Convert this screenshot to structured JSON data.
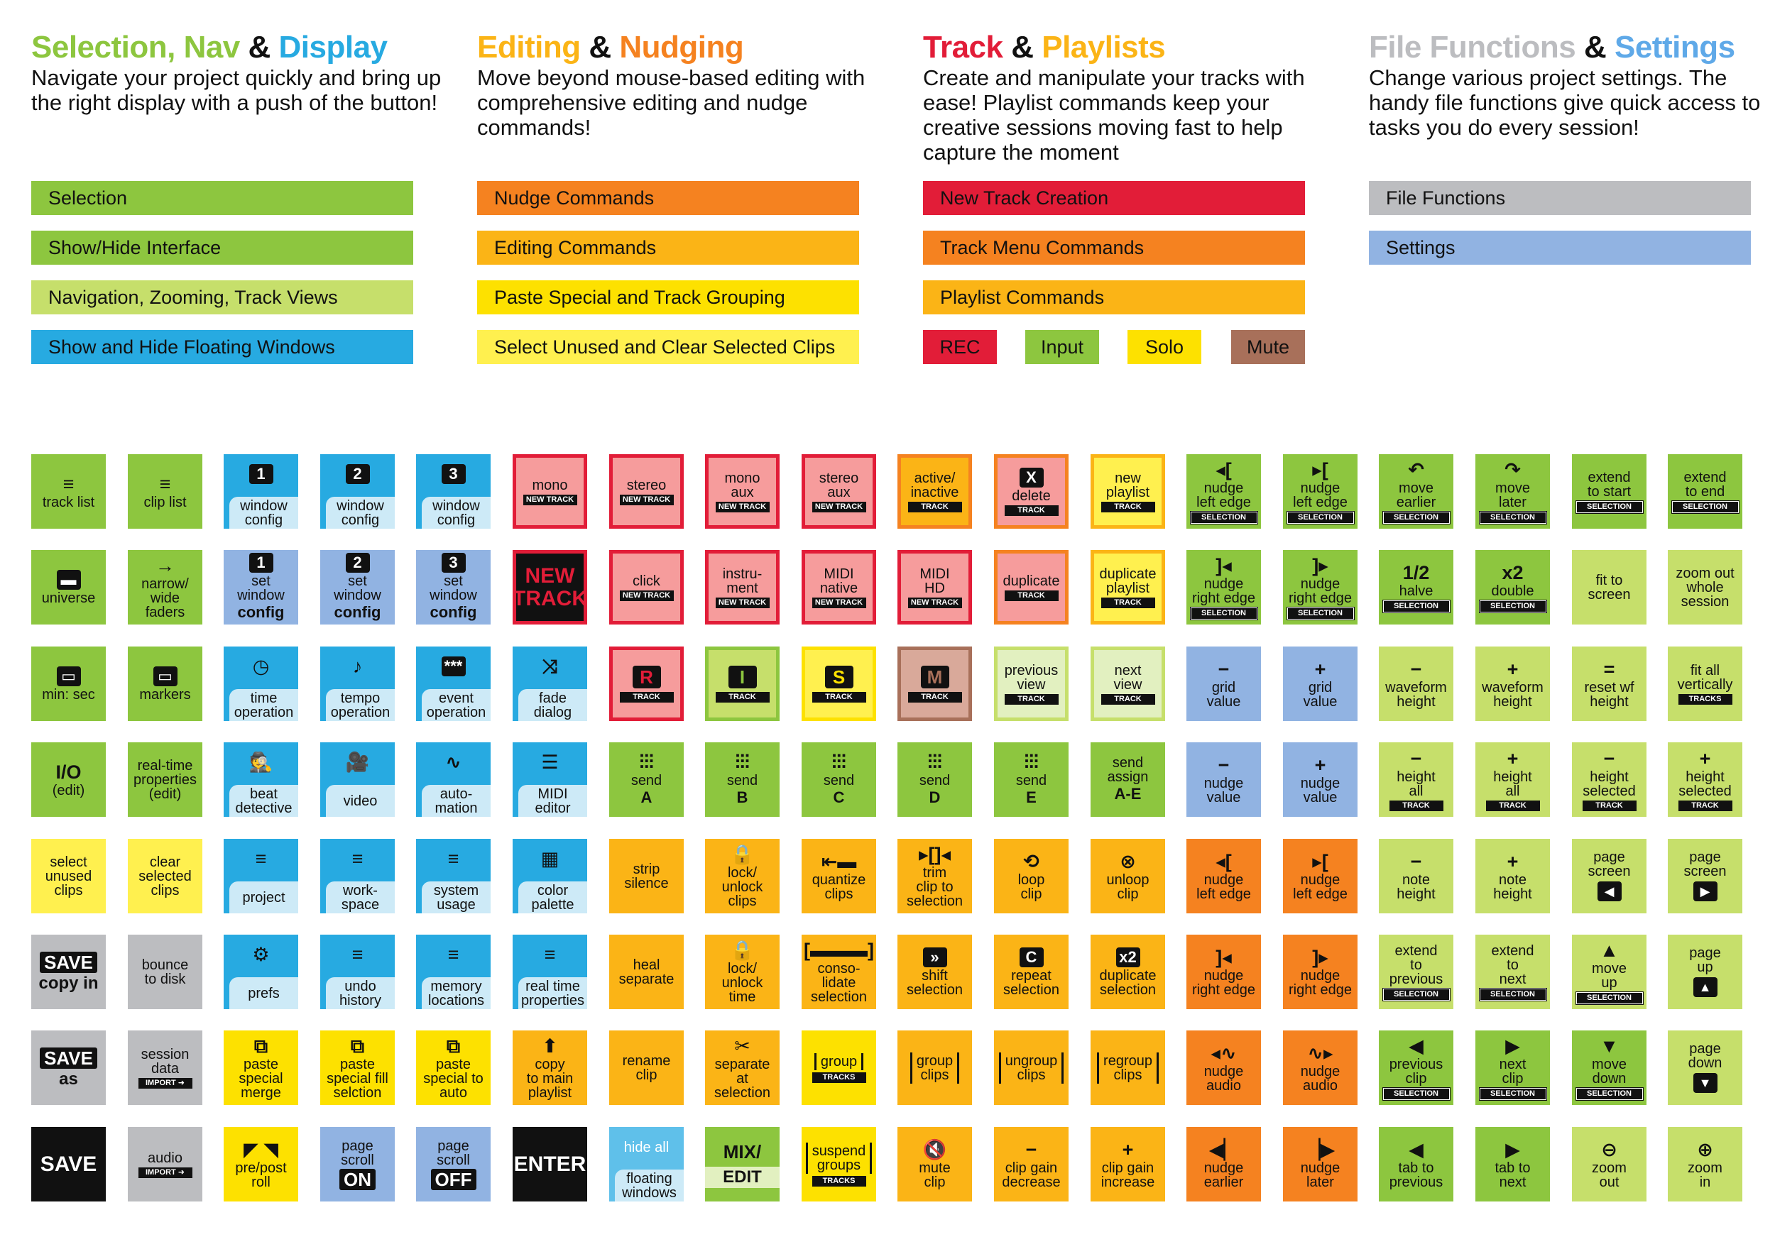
{
  "colors": {
    "green": "#8dc63f",
    "lightgreen": "#c6df6b",
    "blue": "#27aae1",
    "skyblue": "#5fc0ea",
    "orange": "#f58220",
    "amber": "#fbb416",
    "yellow": "#fde100",
    "paleyellow": "#fff04f",
    "red": "#e21d38",
    "pink": "#f69c9c",
    "gray": "#bcbdc0",
    "periwinkle": "#91b3e2",
    "brown": "#a8705a",
    "black": "#111111",
    "paleblue": "#cdeaf7"
  },
  "header": [
    {
      "title_parts": [
        {
          "text": "Selection, Nav",
          "color": "#8dc63f"
        },
        {
          "text": " & ",
          "color": "#111111"
        },
        {
          "text": "Display",
          "color": "#27aae1"
        }
      ],
      "desc": "Navigate your project quickly and bring up the right display with a push of the button!"
    },
    {
      "title_parts": [
        {
          "text": "Editing",
          "color": "#fbb416"
        },
        {
          "text": " & ",
          "color": "#111111"
        },
        {
          "text": "Nudging",
          "color": "#f58220"
        }
      ],
      "desc": "Move beyond mouse-based editing with comprehensive editing and nudge commands!"
    },
    {
      "title_parts": [
        {
          "text": "Track",
          "color": "#e21d38"
        },
        {
          "text": " & ",
          "color": "#111111"
        },
        {
          "text": "Playlists",
          "color": "#fbb416"
        }
      ],
      "desc": "Create and manipulate your tracks with ease! Playlist commands keep your creative sessions moving fast to help capture the moment"
    },
    {
      "title_parts": [
        {
          "text": "File Functions",
          "color": "#bcbdc0"
        },
        {
          "text": " & ",
          "color": "#111111"
        },
        {
          "text": "Settings",
          "color": "#5fa9e8"
        }
      ],
      "desc": "Change various project settings. The handy file functions give quick access to tasks you do every session!"
    }
  ],
  "legend": [
    [
      {
        "label": "Selection",
        "color": "#8dc63f"
      },
      {
        "label": "Show/Hide Interface",
        "color": "#8dc63f"
      },
      {
        "label": "Navigation, Zooming, Track Views",
        "color": "#c6df6b"
      },
      {
        "label": "Show and Hide Floating Windows",
        "color": "#27aae1"
      }
    ],
    [
      {
        "label": "Nudge Commands",
        "color": "#f58220"
      },
      {
        "label": "Editing Commands",
        "color": "#fbb416"
      },
      {
        "label": "Paste Special and Track Grouping",
        "color": "#fde100"
      },
      {
        "label": "Select Unused and Clear Selected Clips",
        "color": "#fff04f"
      }
    ],
    [
      {
        "label": "New Track Creation",
        "color": "#e21d38"
      },
      {
        "label": "Track Menu Commands",
        "color": "#f58220"
      },
      {
        "label": "Playlist Commands",
        "color": "#fbb416"
      }
    ],
    [
      {
        "label": "File Functions",
        "color": "#bcbdc0"
      },
      {
        "label": "Settings",
        "color": "#91b3e2"
      }
    ]
  ],
  "legend_mini": [
    {
      "label": "REC",
      "color": "#e21d38"
    },
    {
      "label": "Input",
      "color": "#8dc63f"
    },
    {
      "label": "Solo",
      "color": "#fde100"
    },
    {
      "label": "Mute",
      "color": "#a8705a"
    }
  ],
  "keys": [
    [
      {
        "bg": "#8dc63f",
        "icon": "≡",
        "label": "track list"
      },
      {
        "bg": "#8dc63f",
        "icon": "≡",
        "label": "clip list"
      },
      {
        "style": "tab",
        "icon": "1",
        "iconbox": true,
        "label": "window\nconfig"
      },
      {
        "style": "tab",
        "icon": "2",
        "iconbox": true,
        "label": "window\nconfig"
      },
      {
        "style": "tab",
        "icon": "3",
        "iconbox": true,
        "label": "window\nconfig"
      },
      {
        "bg": "#f69c9c",
        "border": "#e21d38",
        "label": "mono",
        "tag": "NEW TRACK"
      },
      {
        "bg": "#f69c9c",
        "border": "#e21d38",
        "label": "stereo",
        "tag": "NEW TRACK"
      },
      {
        "bg": "#f69c9c",
        "border": "#e21d38",
        "label": "mono\naux",
        "tag": "NEW TRACK"
      },
      {
        "bg": "#f69c9c",
        "border": "#e21d38",
        "label": "stereo\naux",
        "tag": "NEW TRACK"
      },
      {
        "bg": "#fbb416",
        "border": "#f58220",
        "label": "active/\ninactive",
        "tag": "TRACK"
      },
      {
        "bg": "#f69c9c",
        "border": "#f58220",
        "icon": "X",
        "iconbox": true,
        "label": "delete",
        "tag": "TRACK"
      },
      {
        "bg": "#fff04f",
        "border": "#fbb416",
        "label": "new\nplaylist",
        "tag": "TRACK"
      },
      {
        "bg": "#8dc63f",
        "icon": "◂[",
        "label": "nudge\nleft edge",
        "tag": "SELECTION",
        "tagsel": true
      },
      {
        "bg": "#8dc63f",
        "icon": "▸[",
        "label": "nudge\nleft edge",
        "tag": "SELECTION",
        "tagsel": true
      },
      {
        "bg": "#8dc63f",
        "icon": "↶",
        "label": "move\nearlier",
        "tag": "SELECTION",
        "tagsel": true
      },
      {
        "bg": "#8dc63f",
        "icon": "↷",
        "label": "move\nlater",
        "tag": "SELECTION",
        "tagsel": true
      },
      {
        "bg": "#8dc63f",
        "label": "extend\nto start",
        "tag": "SELECTION",
        "tagsel": true
      },
      {
        "bg": "#8dc63f",
        "label": "extend\nto end",
        "tag": "SELECTION",
        "tagsel": true
      }
    ],
    [
      {
        "bg": "#8dc63f",
        "icon": "▬",
        "iconbox": true,
        "label": "universe"
      },
      {
        "bg": "#8dc63f",
        "icon": "→",
        "label": "narrow/\nwide\nfaders"
      },
      {
        "bg": "#91b3e2",
        "icon": "1",
        "iconbox": true,
        "label": "set\nwindow",
        "bold": "config"
      },
      {
        "bg": "#91b3e2",
        "icon": "2",
        "iconbox": true,
        "label": "set\nwindow",
        "bold": "config"
      },
      {
        "bg": "#91b3e2",
        "icon": "3",
        "iconbox": true,
        "label": "set\nwindow",
        "bold": "config"
      },
      {
        "bg": "#111111",
        "border": "#e21d38",
        "bigred": "NEW\nTRACK"
      },
      {
        "bg": "#f69c9c",
        "border": "#e21d38",
        "label": "click",
        "tag": "NEW TRACK"
      },
      {
        "bg": "#f69c9c",
        "border": "#e21d38",
        "label": "instru-\nment",
        "tag": "NEW TRACK"
      },
      {
        "bg": "#f69c9c",
        "border": "#e21d38",
        "label": "MIDI\nnative",
        "tag": "NEW TRACK"
      },
      {
        "bg": "#f69c9c",
        "border": "#e21d38",
        "label": "MIDI\nHD",
        "tag": "NEW TRACK"
      },
      {
        "bg": "#f69c9c",
        "border": "#f58220",
        "label": "duplicate",
        "tag": "TRACK"
      },
      {
        "bg": "#fff04f",
        "border": "#fbb416",
        "label": "duplicate\nplaylist",
        "tag": "TRACK"
      },
      {
        "bg": "#8dc63f",
        "icon": "]◂",
        "label": "nudge\nright edge",
        "tag": "SELECTION",
        "tagsel": true
      },
      {
        "bg": "#8dc63f",
        "icon": "]▸",
        "label": "nudge\nright edge",
        "tag": "SELECTION",
        "tagsel": true
      },
      {
        "bg": "#8dc63f",
        "icon": "1/2",
        "label": "halve",
        "tag": "SELECTION",
        "tagsel": true
      },
      {
        "bg": "#8dc63f",
        "icon": "x2",
        "label": "double",
        "tag": "SELECTION",
        "tagsel": true
      },
      {
        "bg": "#c6df6b",
        "label": "fit to\nscreen"
      },
      {
        "bg": "#c6df6b",
        "label": "zoom out\nwhole\nsession"
      }
    ],
    [
      {
        "bg": "#8dc63f",
        "icon": "▭",
        "iconbox": true,
        "label": "min: sec"
      },
      {
        "bg": "#8dc63f",
        "icon": "▭",
        "iconbox": true,
        "label": "markers"
      },
      {
        "style": "tab",
        "icon": "◷",
        "label": "time\noperation"
      },
      {
        "style": "tab",
        "icon": "♪",
        "label": "tempo\noperation"
      },
      {
        "style": "tab",
        "icon": "***",
        "iconbox": true,
        "label": "event\noperation"
      },
      {
        "style": "tab",
        "icon": "⤨",
        "label": "fade\ndialog"
      },
      {
        "bg": "#f69c9c",
        "border": "#e21d38",
        "icon": "R",
        "iconbox": true,
        "iconcolor": "#e21d38",
        "tag": "TRACK"
      },
      {
        "bg": "#c6df6b",
        "border": "#8dc63f",
        "icon": "I",
        "iconbox": true,
        "iconcolor": "#8dc63f",
        "tag": "TRACK"
      },
      {
        "bg": "#fff04f",
        "border": "#fde100",
        "icon": "S",
        "iconbox": true,
        "iconcolor": "#fde100",
        "tag": "TRACK"
      },
      {
        "bg": "#d9a99a",
        "border": "#a8705a",
        "icon": "M",
        "iconbox": true,
        "iconcolor": "#a8705a",
        "tag": "TRACK"
      },
      {
        "bg": "#e2f0c0",
        "border": "#c6df6b",
        "label": "previous\nview",
        "tag": "TRACK"
      },
      {
        "bg": "#e2f0c0",
        "border": "#c6df6b",
        "label": "next\nview",
        "tag": "TRACK"
      },
      {
        "bg": "#91b3e2",
        "icon": "−",
        "label": "grid\nvalue"
      },
      {
        "bg": "#91b3e2",
        "icon": "+",
        "label": "grid\nvalue"
      },
      {
        "bg": "#c6df6b",
        "icon": "−",
        "label": "waveform\nheight"
      },
      {
        "bg": "#c6df6b",
        "icon": "+",
        "label": "waveform\nheight"
      },
      {
        "bg": "#c6df6b",
        "icon": "=",
        "label": "reset wf\nheight"
      },
      {
        "bg": "#c6df6b",
        "label": "fit all\nvertically",
        "tag": "TRACKS"
      }
    ],
    [
      {
        "bg": "#8dc63f",
        "icon": "I/O",
        "label": "(edit)"
      },
      {
        "bg": "#8dc63f",
        "label": "real-time\nproperties\n(edit)"
      },
      {
        "style": "tab",
        "icon": "🕵",
        "label": "beat\ndetective"
      },
      {
        "style": "tab",
        "icon": "🎥",
        "label": "video"
      },
      {
        "style": "tab",
        "icon": "∿",
        "label": "auto-\nmation"
      },
      {
        "style": "tab",
        "icon": "☰",
        "label": "MIDI\neditor"
      },
      {
        "bg": "#8dc63f",
        "icon": "⫶⫶⫶",
        "label": "send",
        "bold": "A"
      },
      {
        "bg": "#8dc63f",
        "icon": "⫶⫶⫶",
        "label": "send",
        "bold": "B"
      },
      {
        "bg": "#8dc63f",
        "icon": "⫶⫶⫶",
        "label": "send",
        "bold": "C"
      },
      {
        "bg": "#8dc63f",
        "icon": "⫶⫶⫶",
        "label": "send",
        "bold": "D"
      },
      {
        "bg": "#8dc63f",
        "icon": "⫶⫶⫶",
        "label": "send",
        "bold": "E"
      },
      {
        "bg": "#8dc63f",
        "label": "send\nassign",
        "bold": "A-E"
      },
      {
        "bg": "#91b3e2",
        "icon": "−",
        "label": "nudge\nvalue"
      },
      {
        "bg": "#91b3e2",
        "icon": "+",
        "label": "nudge\nvalue"
      },
      {
        "bg": "#c6df6b",
        "icon": "−",
        "label": "height\nall",
        "tag": "TRACK"
      },
      {
        "bg": "#c6df6b",
        "icon": "+",
        "label": "height\nall",
        "tag": "TRACK"
      },
      {
        "bg": "#c6df6b",
        "icon": "−",
        "label": "height\nselected",
        "tag": "TRACK"
      },
      {
        "bg": "#c6df6b",
        "icon": "+",
        "label": "height\nselected",
        "tag": "TRACK"
      }
    ],
    [
      {
        "bg": "#fff04f",
        "label": "select\nunused\nclips"
      },
      {
        "bg": "#fff04f",
        "label": "clear\nselected\nclips"
      },
      {
        "style": "tab",
        "icon": "≡",
        "label": "project"
      },
      {
        "style": "tab",
        "icon": "≡",
        "label": "work-\nspace"
      },
      {
        "style": "tab",
        "icon": "≡",
        "label": "system\nusage"
      },
      {
        "style": "tab",
        "icon": "▦",
        "label": "color\npalette"
      },
      {
        "bg": "#fbb416",
        "label": "strip\nsilence"
      },
      {
        "bg": "#fbb416",
        "icon": "🔒",
        "label": "lock/\nunlock\nclips"
      },
      {
        "bg": "#fbb416",
        "icon": "⇤▬",
        "label": "quantize\nclips"
      },
      {
        "bg": "#fbb416",
        "icon": "▸[]◂",
        "label": "trim\nclip to\nselection"
      },
      {
        "bg": "#fbb416",
        "icon": "⟲",
        "label": "loop\nclip"
      },
      {
        "bg": "#fbb416",
        "icon": "⊗",
        "label": "unloop\nclip"
      },
      {
        "bg": "#f58220",
        "icon": "◂[",
        "label": "nudge\nleft edge"
      },
      {
        "bg": "#f58220",
        "icon": "▸[",
        "label": "nudge\nleft edge"
      },
      {
        "bg": "#c6df6b",
        "icon": "−",
        "label": "note\nheight"
      },
      {
        "bg": "#c6df6b",
        "icon": "+",
        "label": "note\nheight"
      },
      {
        "bg": "#c6df6b",
        "label": "page\nscreen",
        "sicon": "◀"
      },
      {
        "bg": "#c6df6b",
        "label": "page\nscreen",
        "sicon": "▶"
      }
    ],
    [
      {
        "bg": "#bcbdc0",
        "btn": "SAVE",
        "sub": "copy in"
      },
      {
        "bg": "#bcbdc0",
        "label": "bounce\nto disk"
      },
      {
        "style": "tab",
        "icon": "⚙",
        "label": "prefs"
      },
      {
        "style": "tab",
        "icon": "≡",
        "label": "undo\nhistory"
      },
      {
        "style": "tab",
        "icon": "≡",
        "label": "memory\nlocations"
      },
      {
        "style": "tab",
        "icon": "≡",
        "label": "real time\nproperties"
      },
      {
        "bg": "#fbb416",
        "label": "heal\nseparate"
      },
      {
        "bg": "#fbb416",
        "icon": "🔒",
        "label": "lock/\nunlock\ntime"
      },
      {
        "bg": "#fbb416",
        "icon": "[▬▬▬]",
        "label": "conso-\nlidate\nselection"
      },
      {
        "bg": "#fbb416",
        "icon": "»",
        "iconbox": true,
        "label": "shift\nselection"
      },
      {
        "bg": "#fbb416",
        "icon": "C",
        "iconbox": true,
        "label": "repeat\nselection"
      },
      {
        "bg": "#fbb416",
        "icon": "x2",
        "iconbox": true,
        "label": "duplicate\nselection"
      },
      {
        "bg": "#f58220",
        "icon": "]◂",
        "label": "nudge\nright edge"
      },
      {
        "bg": "#f58220",
        "icon": "]▸",
        "label": "nudge\nright edge"
      },
      {
        "bg": "#c6df6b",
        "label": "extend\nto\nprevious",
        "tag": "SELECTION",
        "tagsel": true
      },
      {
        "bg": "#c6df6b",
        "label": "extend\nto\nnext",
        "tag": "SELECTION",
        "tagsel": true
      },
      {
        "bg": "#c6df6b",
        "icon": "▲",
        "label": "move\nup",
        "tag": "SELECTION",
        "tagsel": true
      },
      {
        "bg": "#c6df6b",
        "sicon": "▲",
        "label": "page\nup"
      }
    ],
    [
      {
        "bg": "#bcbdc0",
        "btn": "SAVE",
        "sub": "as"
      },
      {
        "bg": "#bcbdc0",
        "label": "session\ndata",
        "tag": "IMPORT ➜"
      },
      {
        "bg": "#fde100",
        "icon": "⧉",
        "label": "paste\nspecial\nmerge"
      },
      {
        "bg": "#fde100",
        "icon": "⧉",
        "label": "paste\nspecial fill\nselction"
      },
      {
        "bg": "#fde100",
        "icon": "⧉",
        "label": "paste\nspecial to\nauto"
      },
      {
        "bg": "#fbb416",
        "icon": "⬆",
        "label": "copy\nto main\nplaylist"
      },
      {
        "bg": "#fbb416",
        "label": "rename\nclip"
      },
      {
        "bg": "#fbb416",
        "icon": "✂",
        "label": "separate\nat\nselection"
      },
      {
        "bg": "#fde100",
        "label": "group",
        "tag": "TRACKS",
        "bracket": true
      },
      {
        "bg": "#fbb416",
        "label": "group\nclips",
        "bracket": true
      },
      {
        "bg": "#fbb416",
        "label": "ungroup\nclips",
        "bracket": true
      },
      {
        "bg": "#fbb416",
        "label": "regroup\nclips",
        "bracket": true
      },
      {
        "bg": "#f58220",
        "icon": "◂∿",
        "label": "nudge\naudio"
      },
      {
        "bg": "#f58220",
        "icon": "∿▸",
        "label": "nudge\naudio"
      },
      {
        "bg": "#8dc63f",
        "icon": "◀",
        "label": "previous\nclip",
        "tag": "SELECTION",
        "tagsel": true
      },
      {
        "bg": "#8dc63f",
        "icon": "▶",
        "label": "next\nclip",
        "tag": "SELECTION",
        "tagsel": true
      },
      {
        "bg": "#8dc63f",
        "icon": "▼",
        "label": "move\ndown",
        "tag": "SELECTION",
        "tagsel": true
      },
      {
        "bg": "#c6df6b",
        "label": "page\ndown",
        "sicon": "▼"
      }
    ],
    [
      {
        "bg": "#111111",
        "btn": "SAVE",
        "dark": true
      },
      {
        "bg": "#bcbdc0",
        "label": "audio",
        "tag": "IMPORT ➜"
      },
      {
        "bg": "#fde100",
        "icon": "◤ ◥",
        "label": "pre/post\nroll"
      },
      {
        "bg": "#91b3e2",
        "label": "page\nscroll",
        "inv": "ON"
      },
      {
        "bg": "#91b3e2",
        "label": "page\nscroll",
        "inv": "OFF"
      },
      {
        "bg": "#111111",
        "btn": "ENTER",
        "dark": true
      },
      {
        "style": "tabdark",
        "label": "hide all",
        "sub2": "floating\nwindows"
      },
      {
        "bg": "#8dc63f",
        "btn": "MIX/",
        "sub": "EDIT",
        "mixedit": true
      },
      {
        "bg": "#fde100",
        "label": "suspend\ngroups",
        "tag": "TRACKS",
        "bracket": true
      },
      {
        "bg": "#fbb416",
        "icon": "🔇",
        "label": "mute\nclip"
      },
      {
        "bg": "#fbb416",
        "icon": "−",
        "label": "clip gain\ndecrease"
      },
      {
        "bg": "#fbb416",
        "icon": "+",
        "label": "clip gain\nincrease"
      },
      {
        "bg": "#f58220",
        "icon": "◀▏",
        "label": "nudge\nearlier"
      },
      {
        "bg": "#f58220",
        "icon": "▕▶",
        "label": "nudge\nlater"
      },
      {
        "bg": "#8dc63f",
        "icon": "◀",
        "label": "tab to\nprevious"
      },
      {
        "bg": "#8dc63f",
        "icon": "▶",
        "label": "tab to\nnext"
      },
      {
        "bg": "#c6df6b",
        "icon": "⊖",
        "label": "zoom\nout"
      },
      {
        "bg": "#c6df6b",
        "icon": "⊕",
        "label": "zoom\nin"
      }
    ]
  ]
}
